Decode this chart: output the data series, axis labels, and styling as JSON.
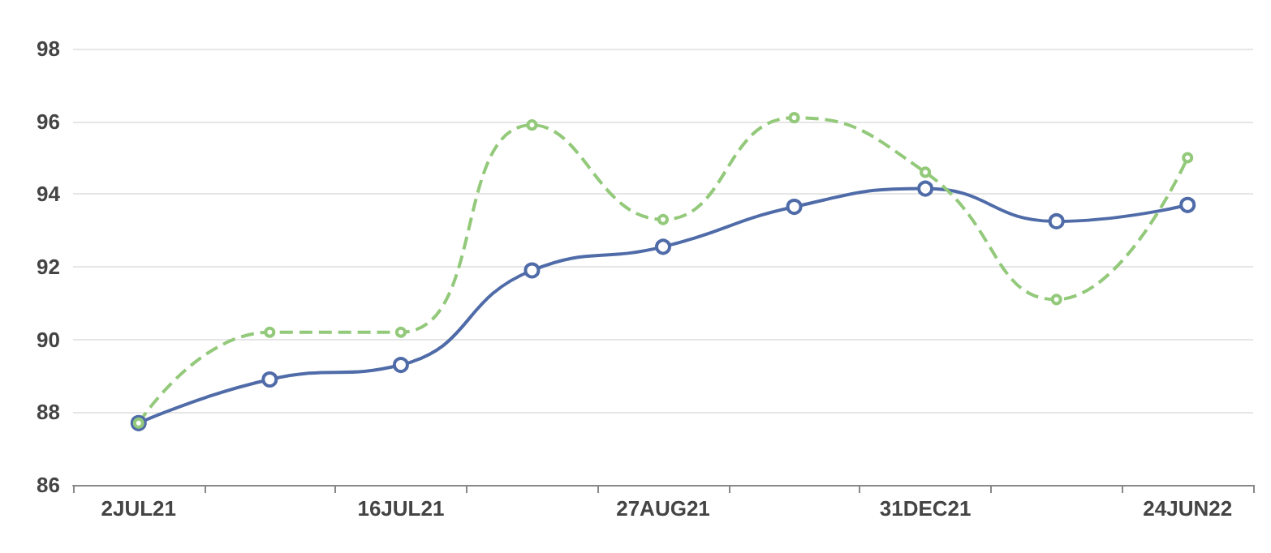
{
  "chart_data": {
    "type": "line",
    "categories": [
      "2JUL21",
      null,
      "16JUL21",
      null,
      "27AUG21",
      null,
      "31DEC21",
      null,
      "24JUN22"
    ],
    "series": [
      {
        "color": "#4f6ba8",
        "values": [
          87.7,
          88.9,
          89.3,
          91.9,
          92.55,
          93.65,
          94.15,
          93.25,
          93.7
        ],
        "line_style": "solid"
      },
      {
        "color": "#93c97a",
        "values": [
          87.7,
          90.2,
          90.2,
          95.9,
          93.3,
          96.1,
          94.6,
          91.1,
          95.0
        ],
        "line_style": "dashed"
      }
    ],
    "ylim": [
      86,
      98
    ],
    "yticks": [
      86,
      88,
      90,
      92,
      94,
      96,
      98
    ],
    "grid": "y",
    "marker": "circle"
  }
}
